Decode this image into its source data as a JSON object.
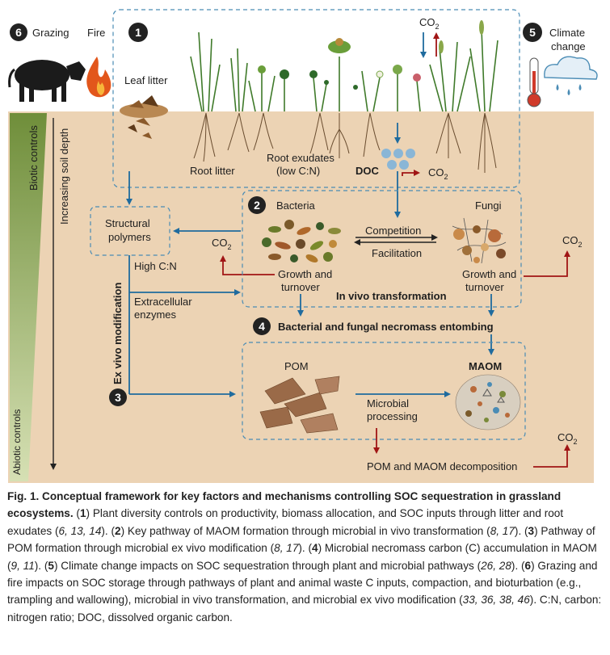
{
  "header": {
    "grazing_num": "6",
    "grazing": "Grazing",
    "fire": "Fire",
    "plant_num": "1",
    "leaf_litter": "Leaf litter",
    "climate_num": "5",
    "climate": [
      "Climate",
      "change"
    ],
    "co2_top": "CO2"
  },
  "side": {
    "biotic": "Biotic controls",
    "abiotic": "Abiotic controls",
    "depth": "Increasing soil depth"
  },
  "soil": {
    "root_litter": "Root litter",
    "root_exudates": [
      "Root exudates",
      "(low C:N)"
    ],
    "doc": "DOC",
    "doc_co2": "CO2",
    "structural": [
      "Structural",
      "polymers"
    ],
    "struct_co2": "CO2",
    "high_cn": "High C:N",
    "extracellular": [
      "Extracellular",
      "enzymes"
    ],
    "ex_vivo": "Ex vivo modification",
    "ex_vivo_num": "3"
  },
  "invivo": {
    "num": "2",
    "bacteria": "Bacteria",
    "fungi": "Fungi",
    "competition": "Competition",
    "facilitation": "Facilitation",
    "bac_growth": [
      "Growth and",
      "turnover"
    ],
    "fun_growth": [
      "Growth and",
      "turnover"
    ],
    "title": "In vivo transformation",
    "fungi_co2": "CO2"
  },
  "necromass": {
    "num": "4",
    "label": "Bacterial and fungal necromass entombing"
  },
  "pools": {
    "pom": "POM",
    "maom": "MAOM",
    "processing": [
      "Microbial",
      "processing"
    ],
    "decomposition": "POM and MAOM decomposition",
    "decomp_co2": "CO2"
  },
  "colors": {
    "soil": "#ecd3b4",
    "red_arrow": "#a01515",
    "blue_arrow": "#1f6b9e",
    "dash": "#4a8cb5",
    "badge": "#222222",
    "biotic_bar": "#7a9440"
  },
  "caption": {
    "title": "Fig. 1. Conceptual framework for key factors and mechanisms controlling SOC sequestration in grassland ecosystems.",
    "p1_num": "1",
    "p1": "Plant diversity controls on productivity, biomass allocation, and SOC inputs through litter and root exudates",
    "r1": "6, 13, 14",
    "p2_num": "2",
    "p2": "Key pathway of MAOM formation through microbial in vivo transformation",
    "r2": "8, 17",
    "p3_num": "3",
    "p3": "Pathway of POM formation through microbial ex vivo modification",
    "r3": "8, 17",
    "p4_num": "4",
    "p4": "Microbial necromass carbon (C) accumulation in MAOM",
    "r4": "9, 11",
    "p5_num": "5",
    "p5": "Climate change impacts on SOC sequestration through plant and microbial pathways",
    "r5": "26, 28",
    "p6_num": "6",
    "p6": "Grazing and fire impacts on SOC storage through pathways of plant and animal waste C inputs, compaction, and bioturbation (e.g., trampling and wallowing), microbial in vivo transformation, and microbial ex vivo modification",
    "r6": "33, 36, 38, 46",
    "abbrev": "C:N, carbon: nitrogen ratio; DOC, dissolved organic carbon."
  }
}
